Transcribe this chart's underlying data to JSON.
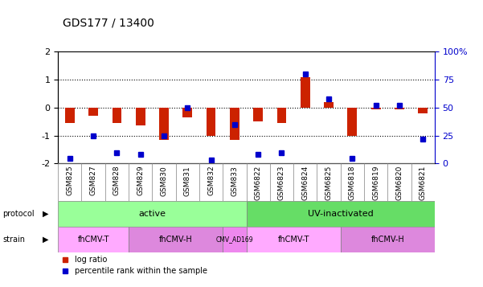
{
  "title": "GDS177 / 13400",
  "samples": [
    "GSM825",
    "GSM827",
    "GSM828",
    "GSM829",
    "GSM830",
    "GSM831",
    "GSM832",
    "GSM833",
    "GSM6822",
    "GSM6823",
    "GSM6824",
    "GSM6825",
    "GSM6818",
    "GSM6819",
    "GSM6820",
    "GSM6821"
  ],
  "log_ratio": [
    -0.55,
    -0.3,
    -0.55,
    -0.65,
    -1.15,
    -0.35,
    -1.0,
    -1.15,
    -0.5,
    -0.55,
    1.1,
    0.2,
    -1.0,
    -0.05,
    -0.05,
    -0.2
  ],
  "percentile": [
    5,
    25,
    10,
    8,
    25,
    50,
    3,
    35,
    8,
    10,
    80,
    58,
    5,
    52,
    52,
    22
  ],
  "ylim": [
    -2,
    2
  ],
  "y2lim": [
    0,
    100
  ],
  "bar_color": "#cc2200",
  "dot_color": "#0000cc",
  "protocol_groups": [
    {
      "label": "active",
      "start": 0,
      "end": 8,
      "color": "#99ff99"
    },
    {
      "label": "UV-inactivated",
      "start": 8,
      "end": 16,
      "color": "#66dd66"
    }
  ],
  "strain_groups": [
    {
      "label": "fhCMV-T",
      "start": 0,
      "end": 3,
      "color": "#ffaaff"
    },
    {
      "label": "fhCMV-H",
      "start": 3,
      "end": 7,
      "color": "#dd88dd"
    },
    {
      "label": "CMV_AD169",
      "start": 7,
      "end": 8,
      "color": "#ee88ee"
    },
    {
      "label": "fhCMV-T",
      "start": 8,
      "end": 12,
      "color": "#ffaaff"
    },
    {
      "label": "fhCMV-H",
      "start": 12,
      "end": 16,
      "color": "#dd88dd"
    }
  ],
  "legend_items": [
    {
      "label": "log ratio",
      "color": "#cc2200"
    },
    {
      "label": "percentile rank within the sample",
      "color": "#0000cc"
    }
  ]
}
